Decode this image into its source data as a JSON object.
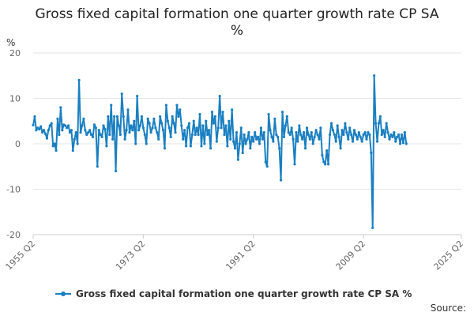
{
  "chart_data": {
    "type": "line",
    "title": "Gross fixed capital formation one quarter growth rate CP SA %",
    "unit_label": "%",
    "ylim": [
      -20,
      20
    ],
    "yticks": [
      20,
      10,
      0,
      -10,
      -20
    ],
    "xlim": [
      "1955 Q2",
      "2025 Q2"
    ],
    "xticks": [
      "1955 Q2",
      "1973 Q2",
      "1991 Q2",
      "2009 Q2",
      "2025 Q2"
    ],
    "grid": true,
    "legend_position": "bottom",
    "source_label": "Source:",
    "series": [
      {
        "name": "Gross fixed capital formation one quarter growth rate CP SA %",
        "color": "#1a7fc1",
        "x_start": "1955 Q2",
        "frequency": "quarterly",
        "values": [
          4.1,
          6.0,
          3.0,
          3.5,
          3.2,
          3.8,
          2.5,
          3.0,
          2.2,
          1.2,
          3.0,
          4.0,
          4.5,
          -0.5,
          0.0,
          -1.5,
          5.5,
          2.0,
          8.0,
          3.0,
          4.2,
          4.0,
          3.5,
          4.0,
          2.5,
          3.0,
          -1.5,
          1.0,
          2.5,
          0.0,
          14.0,
          2.5,
          4.0,
          5.5,
          3.0,
          2.0,
          2.5,
          3.0,
          2.0,
          1.5,
          4.2,
          3.5,
          -5.0,
          3.0,
          2.0,
          1.5,
          4.0,
          3.2,
          -0.5,
          6.0,
          2.0,
          8.5,
          1.0,
          6.0,
          -6.0,
          6.0,
          4.0,
          2.0,
          11.0,
          6.0,
          1.0,
          3.0,
          7.5,
          2.5,
          4.0,
          3.0,
          5.0,
          0.0,
          10.5,
          3.0,
          4.0,
          6.0,
          3.5,
          2.0,
          0.0,
          5.5,
          4.5,
          2.5,
          3.5,
          5.5,
          3.5,
          2.5,
          1.0,
          6.0,
          4.5,
          3.0,
          -1.0,
          8.5,
          5.0,
          3.5,
          1.5,
          6.0,
          4.5,
          2.5,
          8.5,
          6.0,
          7.5,
          4.0,
          1.0,
          3.0,
          -0.5,
          3.5,
          4.5,
          -0.5,
          2.0,
          5.0,
          2.0,
          3.5,
          2.0,
          6.5,
          -0.5,
          4.0,
          0.0,
          5.0,
          2.0,
          3.0,
          -1.0,
          7.0,
          4.5,
          6.0,
          0.5,
          3.5,
          10.5,
          3.5,
          7.0,
          2.0,
          4.0,
          -0.5,
          5.0,
          1.0,
          7.5,
          0.5,
          -1.0,
          2.5,
          -3.5,
          0.0,
          3.5,
          -2.0,
          2.0,
          0.0,
          1.0,
          2.5,
          -1.0,
          1.5,
          0.5,
          2.5,
          1.0,
          1.5,
          0.0,
          3.5,
          1.0,
          2.5,
          -4.0,
          -5.0,
          6.5,
          3.0,
          1.5,
          0.5,
          5.5,
          2.0,
          1.5,
          -1.0,
          -8.0,
          7.0,
          1.5,
          4.0,
          6.0,
          2.5,
          2.0,
          3.5,
          1.0,
          -4.5,
          2.5,
          0.5,
          4.0,
          2.0,
          1.0,
          2.5,
          -1.0,
          3.5,
          2.0,
          1.0,
          2.5,
          0.0,
          1.5,
          3.0,
          2.0,
          1.0,
          3.5,
          -2.5,
          -4.0,
          -4.5,
          -1.5,
          -4.5,
          2.0,
          4.5,
          3.0,
          2.0,
          0.5,
          4.0,
          1.5,
          -1.0,
          3.0,
          2.0,
          4.5,
          2.5,
          1.0,
          3.5,
          2.0,
          0.5,
          3.0,
          2.0,
          1.0,
          2.5,
          1.5,
          0.5,
          2.0,
          2.5,
          1.0,
          2.5,
          2.0,
          -2.0,
          -18.5,
          15.0,
          4.5,
          0.5,
          4.5,
          6.0,
          2.0,
          3.0,
          1.5,
          4.5,
          2.5,
          1.0,
          2.0,
          1.5,
          2.5,
          0.5,
          1.5,
          2.0,
          0.0,
          2.0,
          0.2,
          2.5,
          0.0
        ]
      }
    ]
  }
}
